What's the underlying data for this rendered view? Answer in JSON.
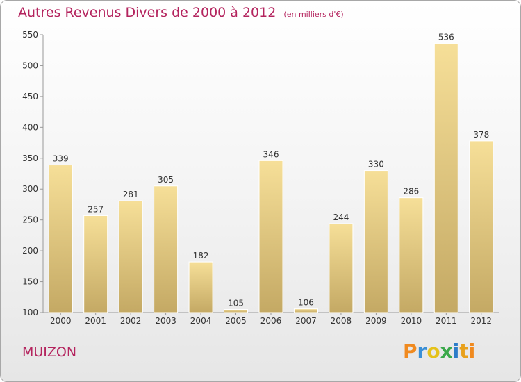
{
  "header": {
    "title": "Autres Revenus Divers de 2000 à 2012",
    "unit": "(en milliers d'€)"
  },
  "footer": {
    "commune": "MUIZON",
    "logo_text": "Proxiti"
  },
  "colors": {
    "accent": "#b4245e",
    "bar_top": "#f6df98",
    "bar_bottom": "#c4a964",
    "logo_letters": [
      "#f08a1f",
      "#3a8fd6",
      "#e5c21a",
      "#3aa84a",
      "#2d7cc8",
      "#e8a11c",
      "#f08a1f"
    ]
  },
  "chart_data": {
    "type": "bar",
    "title": "Autres Revenus Divers de 2000 à 2012",
    "subtitle": "(en milliers d'€)",
    "categories": [
      "2000",
      "2001",
      "2002",
      "2003",
      "2004",
      "2005",
      "2006",
      "2007",
      "2008",
      "2009",
      "2010",
      "2011",
      "2012"
    ],
    "values": [
      339,
      257,
      281,
      305,
      182,
      105,
      346,
      106,
      244,
      330,
      286,
      536,
      378
    ],
    "ylim": [
      100,
      550
    ],
    "yticks": [
      100,
      150,
      200,
      250,
      300,
      350,
      400,
      450,
      500,
      550
    ],
    "grid": false,
    "legend": "none"
  }
}
